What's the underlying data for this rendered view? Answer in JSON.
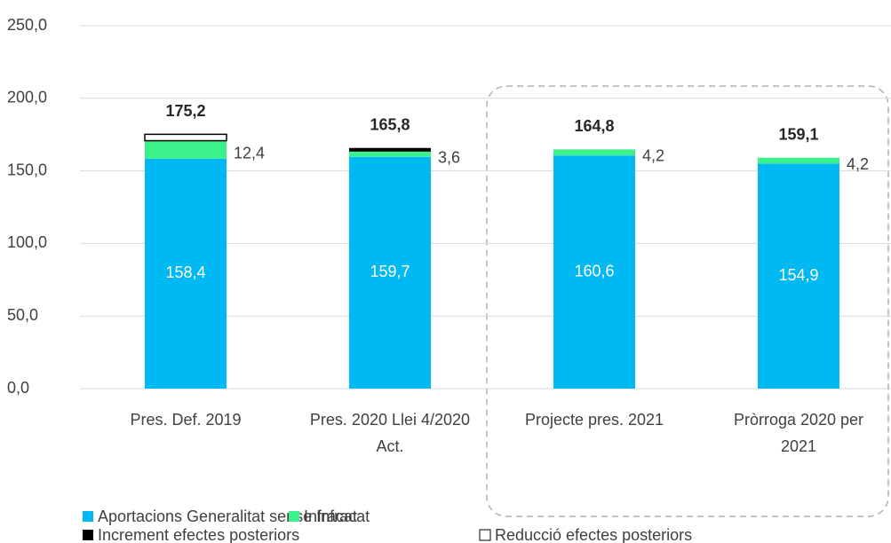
{
  "chart_data": {
    "type": "stacked_bar",
    "categories": [
      "Pres. Def. 2019",
      "Pres. 2020 Llei 4/2020 Act.",
      "Projecte pres. 2021",
      "Pròrroga 2020 per 2021"
    ],
    "series": [
      {
        "name": "Aportacions Generalitat sense Infracat",
        "color": "#00b9f2",
        "values": [
          158.4,
          159.7,
          160.6,
          154.9
        ],
        "value_labels": [
          "158,4",
          "159,7",
          "160,6",
          "154,9"
        ]
      },
      {
        "name": "Infracat",
        "color": "#3cf08c",
        "values": [
          12.4,
          3.6,
          4.2,
          4.2
        ],
        "value_labels": [
          "12,4",
          "3,6",
          "4,2",
          "4,2"
        ]
      },
      {
        "name": "Increment efectes posteriors",
        "color": "#000000",
        "values": [
          null,
          2.5,
          null,
          null
        ]
      },
      {
        "name": "Reducció efectes posteriors",
        "color": "#ffffff",
        "values": [
          4.4,
          null,
          null,
          null
        ]
      }
    ],
    "totals": {
      "values": [
        175.2,
        165.8,
        164.8,
        159.1
      ],
      "value_labels": [
        "175,2",
        "165,8",
        "164,8",
        "159,1"
      ]
    },
    "ylim": [
      0,
      250
    ],
    "yticks": [
      {
        "value": 0,
        "label": "0,0"
      },
      {
        "value": 50,
        "label": "50,0"
      },
      {
        "value": 100,
        "label": "100,0"
      },
      {
        "value": 150,
        "label": "150,0"
      },
      {
        "value": 200,
        "label": "200,0"
      },
      {
        "value": 250,
        "label": "250,0"
      }
    ],
    "grid": true
  }
}
